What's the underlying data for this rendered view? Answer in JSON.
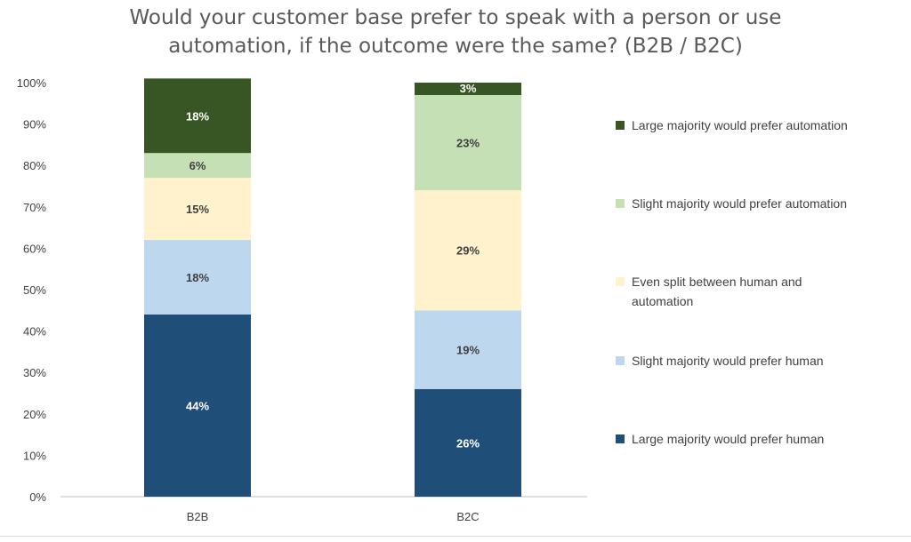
{
  "chart_data": {
    "type": "bar",
    "stacked": true,
    "title": "Would your customer base prefer to speak with a person or use automation, if the outcome were the same? (B2B / B2C)",
    "title_lines": [
      "Would your customer base prefer to speak with a person or use",
      "automation, if the outcome were the same? (B2B / B2C)"
    ],
    "categories": [
      "B2B",
      "B2C"
    ],
    "ylim": [
      0,
      100
    ],
    "yticks": [
      "0%",
      "10%",
      "20%",
      "30%",
      "40%",
      "50%",
      "60%",
      "70%",
      "80%",
      "90%",
      "100%"
    ],
    "grid": false,
    "legend_position": "right",
    "series": [
      {
        "name": "Large majority would prefer human",
        "color": "#1f4e79",
        "label_color": "#ffffff",
        "values": [
          44,
          26
        ],
        "labels": [
          "44%",
          "26%"
        ]
      },
      {
        "name": "Slight majority would prefer human",
        "color": "#bdd7ee",
        "label_color": "#404040",
        "values": [
          18,
          19
        ],
        "labels": [
          "18%",
          "19%"
        ]
      },
      {
        "name": "Even split between human and automation",
        "color": "#fff2cc",
        "label_color": "#404040",
        "values": [
          15,
          29
        ],
        "labels": [
          "15%",
          "29%"
        ]
      },
      {
        "name": "Slight majority would prefer automation",
        "color": "#c5e0b4",
        "label_color": "#404040",
        "values": [
          6,
          23
        ],
        "labels": [
          "6%",
          "23%"
        ]
      },
      {
        "name": "Large majority would prefer automation",
        "color": "#375623",
        "label_color": "#ffffff",
        "values": [
          18,
          3
        ],
        "labels": [
          "18%",
          "3%"
        ]
      }
    ],
    "legend_order": [
      4,
      3,
      2,
      1,
      0
    ],
    "legend_lines": [
      [
        "Large majority would prefer automation"
      ],
      [
        "Slight majority would prefer automation"
      ],
      [
        "Even split between human and",
        "automation"
      ],
      [
        "Slight majority would prefer human"
      ],
      [
        "Large majority would prefer human"
      ]
    ]
  }
}
